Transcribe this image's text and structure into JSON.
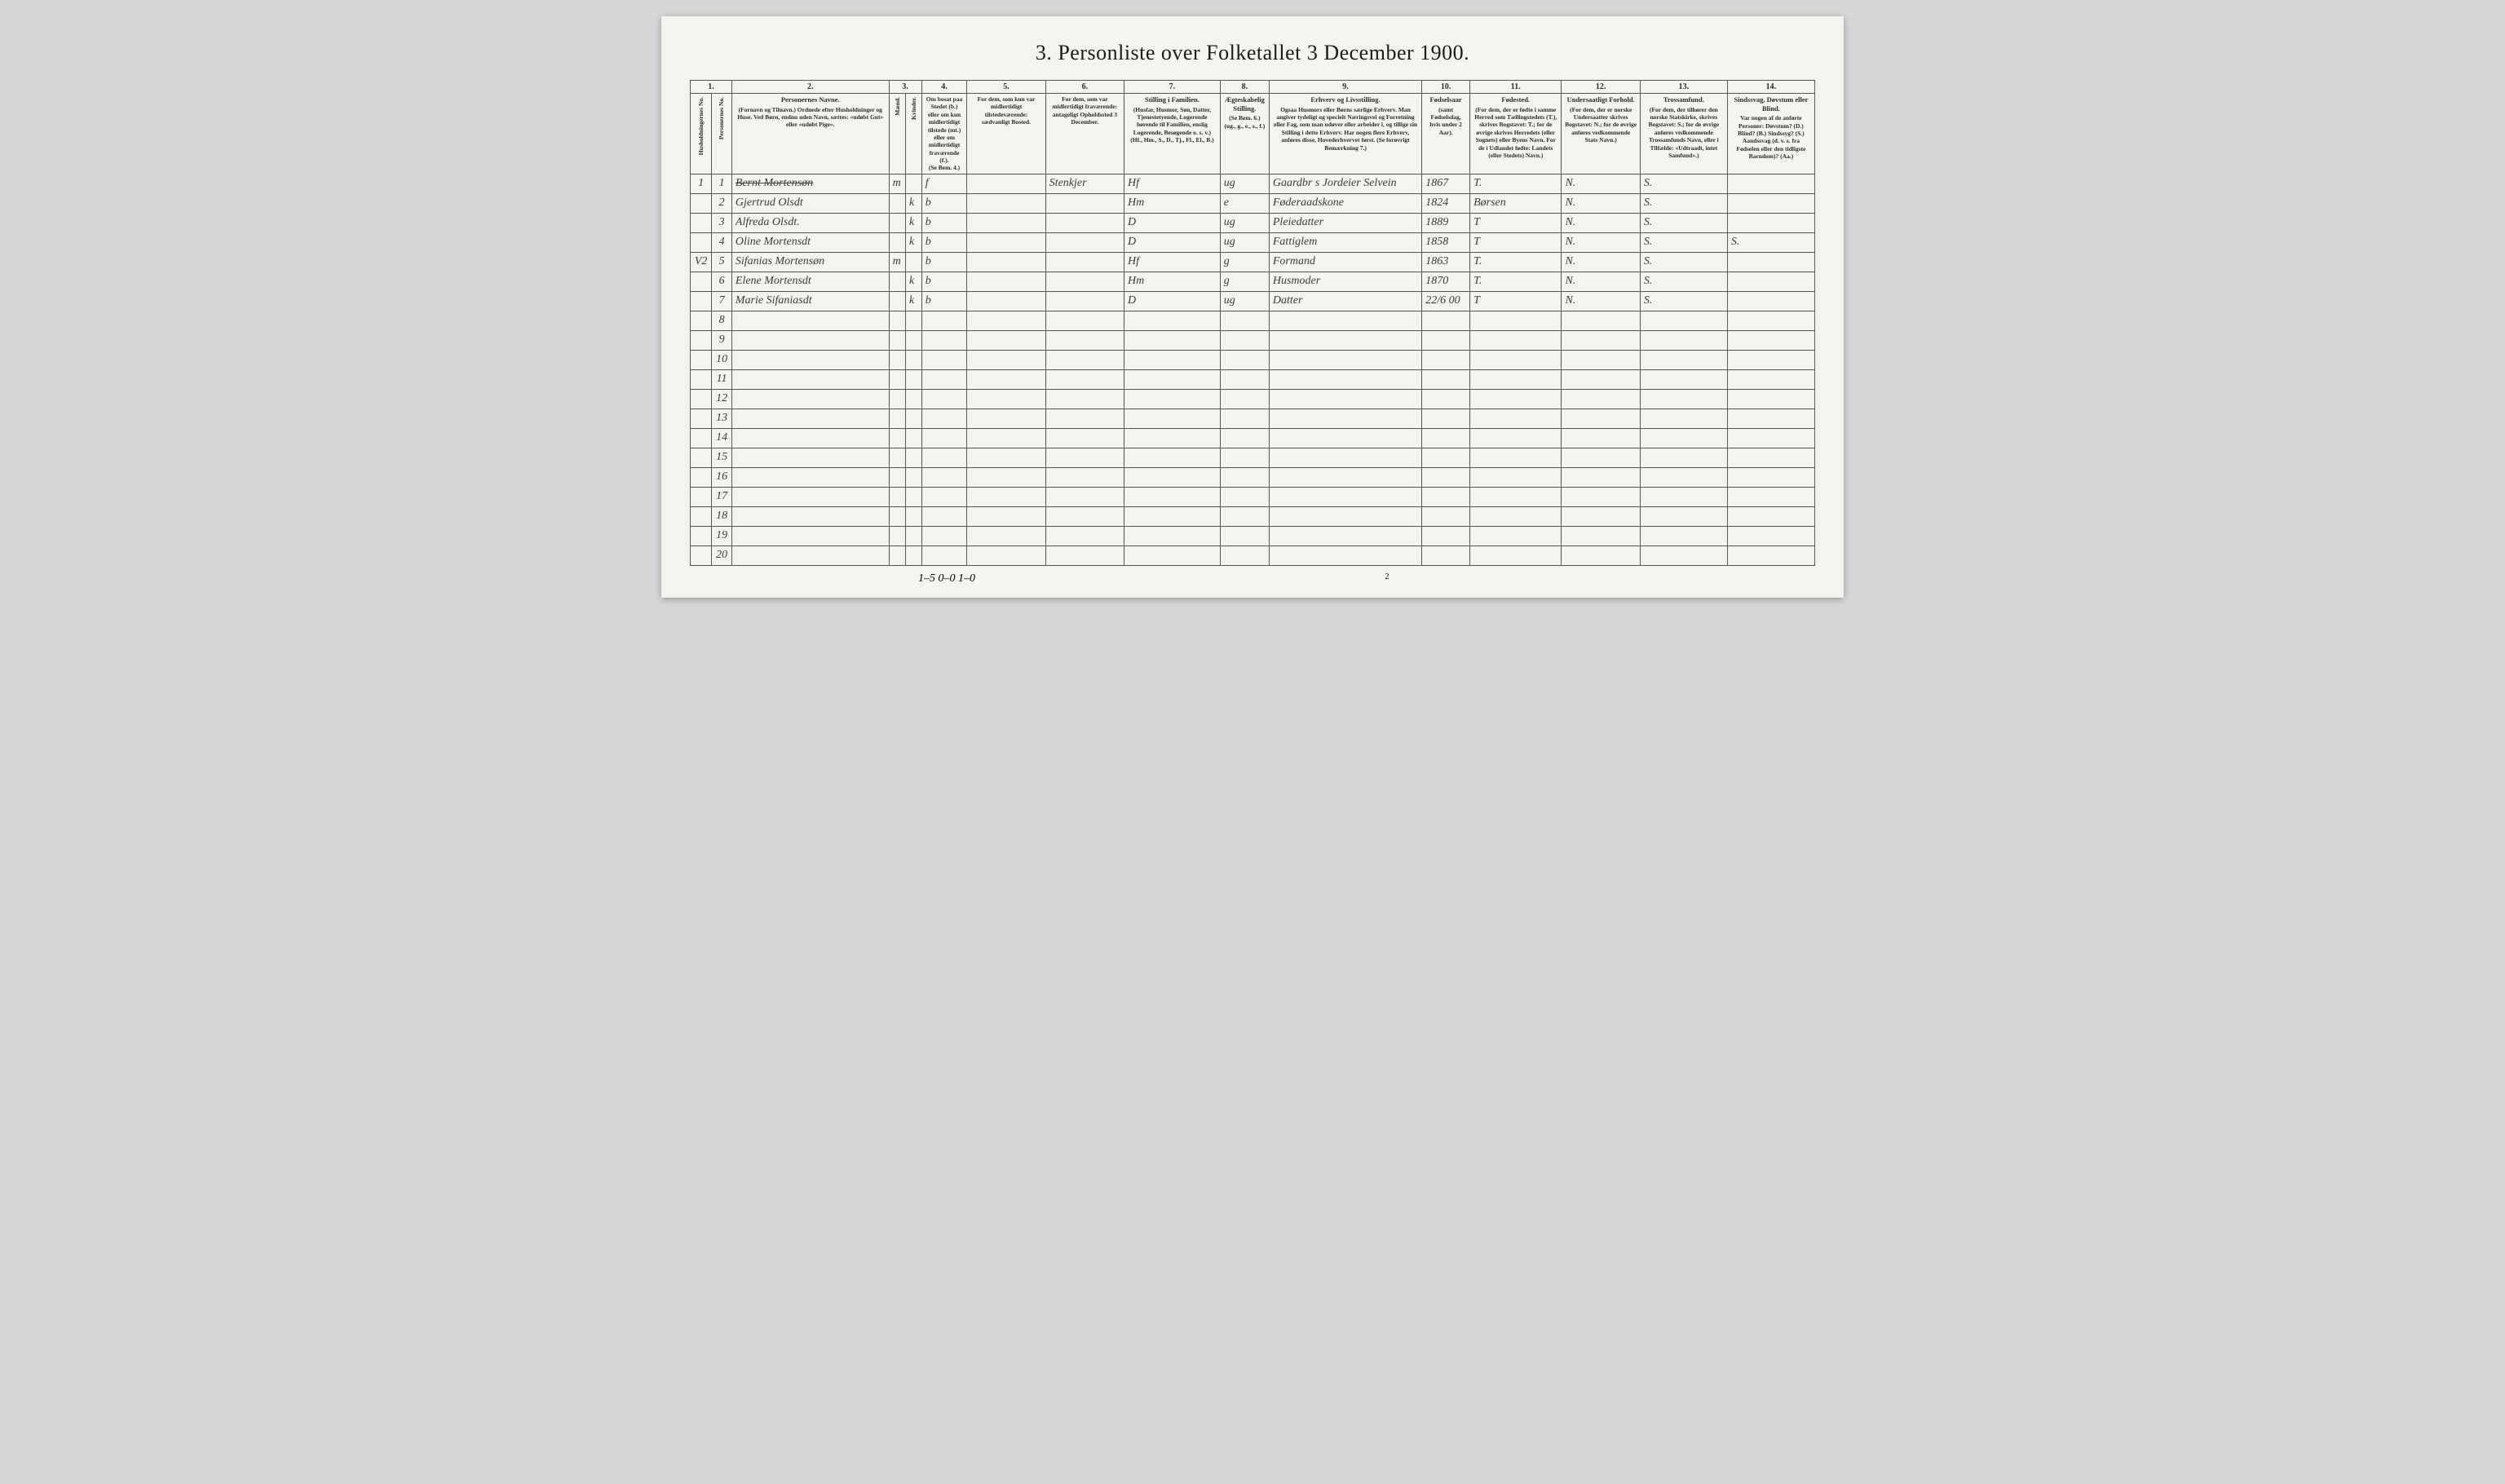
{
  "title": "3. Personliste over Folketallet 3 December 1900.",
  "columns": {
    "n1": "1.",
    "n2": "2.",
    "n3": "3.",
    "n4": "4.",
    "n5": "5.",
    "n6": "6.",
    "n7": "7.",
    "n8": "8.",
    "n9": "9.",
    "n10": "10.",
    "n11": "11.",
    "n12": "12.",
    "n13": "13.",
    "n14": "14."
  },
  "headers": {
    "h1a": "Husholdningernes No.",
    "h1b": "Personernes No.",
    "h2_title": "Personernes Navne.",
    "h2_sub": "(Fornavn og Tilnavn.)\nOrdnede efter Husholdninger og Huse.\nVed Børn, endnu uden Navn, sættes: «udøbt Gut» eller «udøbt Pige».",
    "h3_title": "Kjøn.",
    "h3a": "Mænd.",
    "h3b": "Kvinder.",
    "h3_foot": "m. k.",
    "h4_title": "Om bosat paa Stedet (b.) eller om kun midlertidigt tilstede (mt.) eller om midlertidigt fraværende (f.).",
    "h4_foot": "(Se Bem. 4.)",
    "h5_title": "For dem, som kun var midlertidigt tilstedeværende:",
    "h5_sub": "sædvanligt Bosted.",
    "h6_title": "For dem, som var midlertidigt fraværende:",
    "h6_sub": "antageligt Opholdssted 3 December.",
    "h7_title": "Stilling i Familien.",
    "h7_sub": "(Husfar, Husmor, Søn, Datter, Tjenestetyende, Logerende hørende til Familien, enslig Logerende, Besøgende o. s. v.)\n(Hf., Hm., S., D., Tj., Fl., El., B.)",
    "h8_title": "Ægteskabelig Stilling.",
    "h8_sub": "(Se Bem. 6.)\n(ug., g., e., s., f.)",
    "h9_title": "Erhverv og Livsstilling.",
    "h9_sub": "Ogsaa Husmors eller Børns særlige Erhverv. Man angiver tydeligt og specielt Næringsvei og Forretning eller Fag, som man udøver eller arbeider i, og tillige sin Stilling i dette Erhverv. Har nogen flere Erhverv, anføres disse, Hovederhvervet først.\n(Se forøvrigt Bemærkning 7.)",
    "h10_title": "Fødselsaar",
    "h10_sub": "(samt Fødselsdag, hvis under 2 Aar).",
    "h11_title": "Fødested.",
    "h11_sub": "(For dem, der er fødte i samme Herred som Tællingstedets (T.), skrives Bogstavet: T.; for de øvrige skrives Herredets (eller Sognets) eller Byens Navn. For de i Udlandet fødte: Landets (eller Stedets) Navn.)",
    "h12_title": "Undersaatligt Forhold.",
    "h12_sub": "(For dem, der er norske Undersaatter skrives Bogstavet: N.; for de øvrige anføres vedkommende Stats Navn.)",
    "h13_title": "Trossamfund.",
    "h13_sub": "(For dem, der tilhører den norske Statskirke, skrives Bogstavet: S.; for de øvrige anføres vedkommende Trossamfunds Navn, eller i Tilfælde: «Udtraadt, intet Samfund».)",
    "h14_title": "Sindssvag, Døvstum eller Blind.",
    "h14_sub": "Var nogen af de anførte Personer:\nDøvstum? (D.)\nBlind? (B.)\nSindssyg? (S.)\nAandssvag (d. v. s. fra Fødselen eller den tidligste Barndom)? (Aa.)"
  },
  "rows": [
    {
      "hh": "1",
      "pn": "1",
      "name": "Bernt Mortensøn",
      "kM": "m",
      "kK": "",
      "bos": "f",
      "mt": "",
      "fr": "Stenkjer",
      "fam": "Hf",
      "egte": "ug",
      "erhv": "Gaardbr s Jordeier Selvein",
      "aar": "1867",
      "fsted": "T.",
      "und": "N.",
      "tro": "S.",
      "sind": "",
      "struck": true
    },
    {
      "hh": "",
      "pn": "2",
      "name": "Gjertrud Olsdt",
      "kM": "",
      "kK": "k",
      "bos": "b",
      "mt": "",
      "fr": "",
      "fam": "Hm",
      "egte": "e",
      "erhv": "Føderaadskone",
      "aar": "1824",
      "fsted": "Børsen",
      "und": "N.",
      "tro": "S.",
      "sind": ""
    },
    {
      "hh": "",
      "pn": "3",
      "name": "Alfreda Olsdt.",
      "kM": "",
      "kK": "k",
      "bos": "b",
      "mt": "",
      "fr": "",
      "fam": "D",
      "egte": "ug",
      "erhv": "Pleiedatter",
      "aar": "1889",
      "fsted": "T",
      "und": "N.",
      "tro": "S.",
      "sind": ""
    },
    {
      "hh": "",
      "pn": "4",
      "name": "Oline Mortensdt",
      "kM": "",
      "kK": "k",
      "bos": "b",
      "mt": "",
      "fr": "",
      "fam": "D",
      "egte": "ug",
      "erhv": "Fattiglem",
      "aar": "1858",
      "fsted": "T",
      "und": "N.",
      "tro": "S.",
      "sind": "S."
    },
    {
      "hh": "V2",
      "pn": "5",
      "name": "Sifanias Mortensøn",
      "kM": "m",
      "kK": "",
      "bos": "b",
      "mt": "",
      "fr": "",
      "fam": "Hf",
      "egte": "g",
      "erhv": "Formand",
      "aar": "1863",
      "fsted": "T.",
      "und": "N.",
      "tro": "S.",
      "sind": ""
    },
    {
      "hh": "",
      "pn": "6",
      "name": "Elene Mortensdt",
      "kM": "",
      "kK": "k",
      "bos": "b",
      "mt": "",
      "fr": "",
      "fam": "Hm",
      "egte": "g",
      "erhv": "Husmoder",
      "aar": "1870",
      "fsted": "T.",
      "und": "N.",
      "tro": "S.",
      "sind": ""
    },
    {
      "hh": "",
      "pn": "7",
      "name": "Marie Sifaniasdt",
      "kM": "",
      "kK": "k",
      "bos": "b",
      "mt": "",
      "fr": "",
      "fam": "D",
      "egte": "ug",
      "erhv": "Datter",
      "aar": "22/6 00",
      "fsted": "T",
      "und": "N.",
      "tro": "S.",
      "sind": ""
    }
  ],
  "empty_rows": [
    "8",
    "9",
    "10",
    "11",
    "12",
    "13",
    "14",
    "15",
    "16",
    "17",
    "18",
    "19",
    "20"
  ],
  "footer_note": "1–5  0–0  1–0",
  "page_number": "2"
}
